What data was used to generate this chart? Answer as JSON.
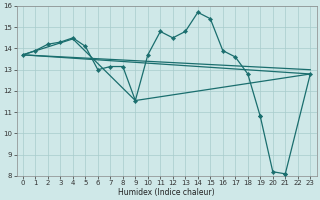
{
  "xlabel": "Humidex (Indice chaleur)",
  "bg_color": "#cfe8e8",
  "grid_color": "#a8cccc",
  "line_color": "#1a6e6e",
  "xlim": [
    -0.5,
    23.5
  ],
  "ylim": [
    8,
    16
  ],
  "xticks": [
    0,
    1,
    2,
    3,
    4,
    5,
    6,
    7,
    8,
    9,
    10,
    11,
    12,
    13,
    14,
    15,
    16,
    17,
    18,
    19,
    20,
    21,
    22,
    23
  ],
  "yticks": [
    8,
    9,
    10,
    11,
    12,
    13,
    14,
    15,
    16
  ],
  "main_line": {
    "x": [
      0,
      1,
      2,
      3,
      4,
      5,
      6,
      7,
      8,
      9,
      10,
      11,
      12,
      13,
      14,
      15,
      16,
      17,
      18,
      19,
      20,
      21,
      22,
      23
    ],
    "y": [
      13.7,
      13.9,
      14.2,
      14.3,
      14.5,
      14.1,
      13.0,
      13.15,
      13.15,
      11.55,
      13.7,
      14.8,
      14.5,
      14.8,
      15.7,
      15.4,
      13.9,
      13.6,
      12.8,
      10.8,
      null,
      null,
      null,
      null
    ]
  },
  "gap_line": {
    "x": [
      19,
      20,
      21
    ],
    "y": [
      10.8,
      8.2,
      8.1
    ]
  },
  "end_line": {
    "x": [
      21,
      23
    ],
    "y": [
      8.1,
      12.8
    ]
  },
  "trend_lines": [
    {
      "x": [
        0,
        23
      ],
      "y": [
        13.7,
        12.8
      ]
    },
    {
      "x": [
        0,
        23
      ],
      "y": [
        13.7,
        13.0
      ]
    },
    {
      "x": [
        0,
        4,
        9,
        23
      ],
      "y": [
        13.7,
        14.45,
        11.55,
        12.8
      ]
    }
  ]
}
